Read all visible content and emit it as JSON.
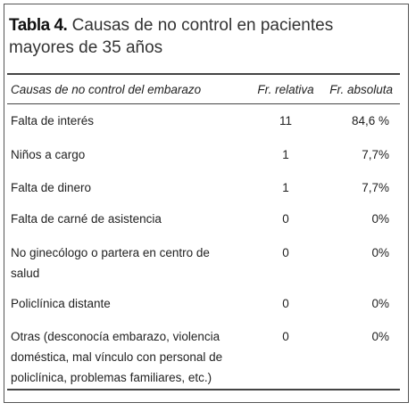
{
  "table": {
    "title_label": "Tabla 4.",
    "title_text": "Causas de no control en pacientes mayores de 35 años",
    "header": [
      "Causas de no control del embarazo",
      "Fr. relativa",
      "Fr. absoluta"
    ],
    "rows": [
      [
        "Falta de interés",
        "11",
        "84,6 %"
      ],
      [
        "Niños a cargo",
        "1",
        "7,7%"
      ],
      [
        "Falta de dinero",
        "1",
        "7,7%"
      ],
      [
        "Falta de carné de asistencia",
        "0",
        "0%"
      ],
      [
        "No ginecólogo o partera en centro de salud",
        "0",
        "0%"
      ],
      [
        "Policlínica distante",
        "0",
        "0%"
      ],
      [
        "Otras (desconocía embarazo, violencia doméstica, mal vínculo con personal de policlínica, problemas familiares, etc.)",
        "0",
        "0%"
      ]
    ]
  }
}
